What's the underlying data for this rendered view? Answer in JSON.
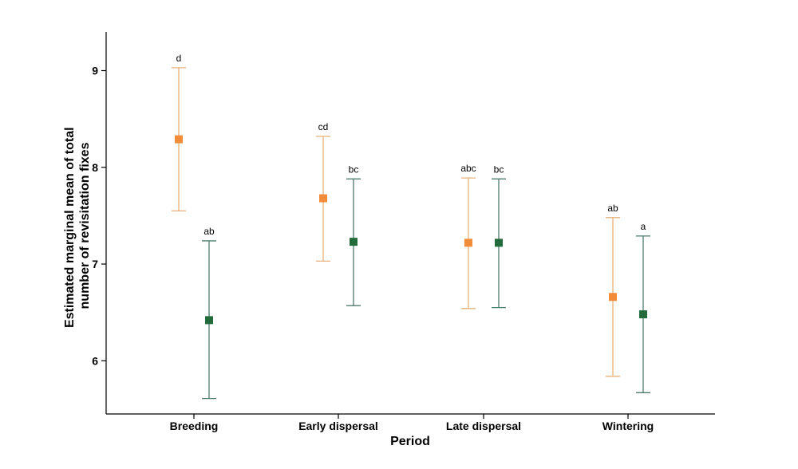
{
  "chart_data": {
    "type": "scatter",
    "title": "",
    "xlabel": "Period",
    "ylabel_lines": [
      "Estimated marginal mean of total",
      "number of revisitation fixes"
    ],
    "categories": [
      "Breeding",
      "Early dispersal",
      "Late dispersal",
      "Wintering"
    ],
    "ylim": [
      5.45,
      9.4
    ],
    "yticks": [
      "6",
      "7",
      "8",
      "9"
    ],
    "legend": "none",
    "grid": false,
    "series": [
      {
        "color": "#F28C38",
        "error_color": "#E8B07A",
        "values": [
          8.29,
          7.68,
          7.22,
          6.66
        ],
        "lower": [
          7.55,
          7.03,
          6.54,
          5.84
        ],
        "upper": [
          9.03,
          8.32,
          7.89,
          7.48
        ],
        "letters": [
          "d",
          "cd",
          "abc",
          "ab"
        ]
      },
      {
        "color": "#236B3B",
        "error_color": "#4F7A6E",
        "values": [
          6.42,
          7.23,
          7.22,
          6.48
        ],
        "lower": [
          5.61,
          6.57,
          6.55,
          5.67
        ],
        "upper": [
          7.24,
          7.88,
          7.88,
          7.29
        ],
        "letters": [
          "ab",
          "bc",
          "bc",
          "a"
        ]
      }
    ]
  }
}
